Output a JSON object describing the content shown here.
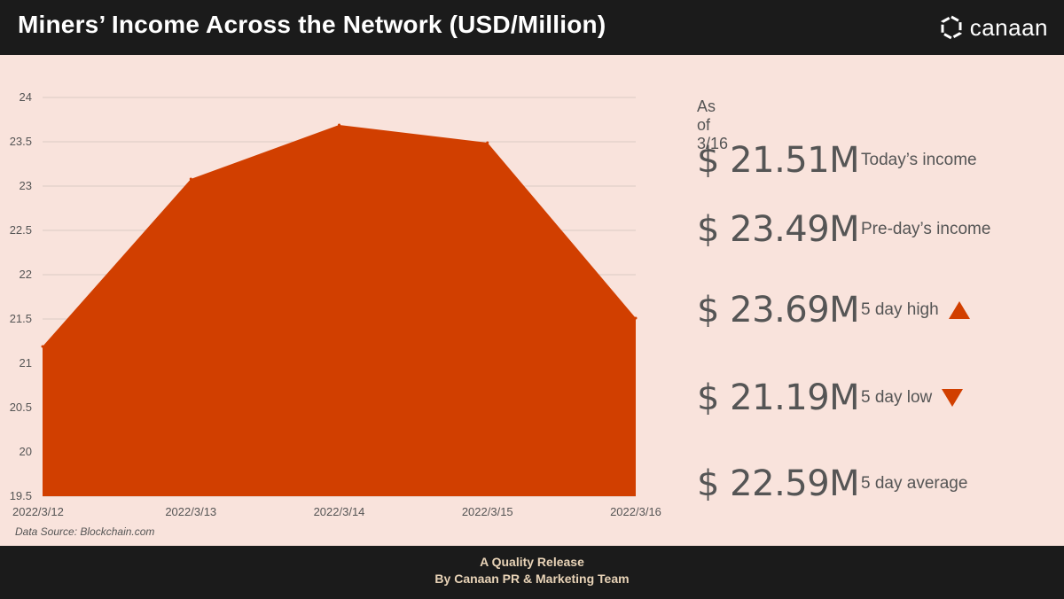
{
  "header": {
    "title": "Miners’ Income Across the Network (USD/Million)",
    "brand": "canaan"
  },
  "chart_data": {
    "type": "area",
    "x": [
      "2022/3/12",
      "2022/3/13",
      "2022/3/14",
      "2022/3/15",
      "2022/3/16"
    ],
    "values": [
      21.19,
      23.08,
      23.69,
      23.49,
      21.51
    ],
    "ylim": [
      19.5,
      24
    ],
    "yticks": [
      "24",
      "23.5",
      "23",
      "22.5",
      "22",
      "21.5",
      "21",
      "20.5",
      "20",
      "19.5"
    ],
    "grid": true,
    "fill_color": "#d13f00"
  },
  "source": "Data Source: Blockchain.com",
  "stats": {
    "as_of": "As of 3/16",
    "rows": [
      {
        "value": "$ 21.51M",
        "label": "Today’s income",
        "icon": ""
      },
      {
        "value": "$ 23.49M",
        "label": "Pre-day’s income",
        "icon": ""
      },
      {
        "value": "$ 23.69M",
        "label": "5 day high",
        "icon": "triangle-up-icon"
      },
      {
        "value": "$ 21.19M",
        "label": "5 day low",
        "icon": "triangle-down-icon"
      },
      {
        "value": "$ 22.59M",
        "label": "5 day average",
        "icon": ""
      }
    ]
  },
  "footer": {
    "line1": "A Quality Release",
    "line2": "By Canaan PR & Marketing Team"
  },
  "colors": {
    "accent": "#d13f00",
    "panel": "#f9e3dc",
    "bar": "#1b1b1b",
    "footer_text": "#e8d3b7"
  }
}
